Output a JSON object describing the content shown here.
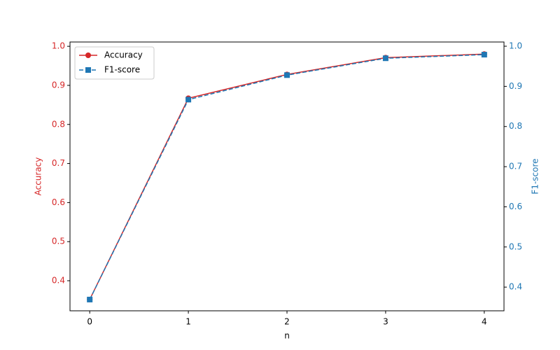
{
  "chart_data": {
    "type": "line",
    "xlabel": "n",
    "ylabel": "Accuracy",
    "y2label": "F1-score",
    "x": [
      0,
      1,
      2,
      3,
      4
    ],
    "series": [
      {
        "name": "Accuracy",
        "color": "#d62728",
        "marker": "circle",
        "linestyle": "solid",
        "axis": "y",
        "values": [
          0.352,
          0.867,
          0.928,
          0.971,
          0.98
        ]
      },
      {
        "name": "F1-score",
        "color": "#1f77b4",
        "marker": "square",
        "linestyle": "dashed",
        "axis": "y2",
        "values": [
          0.369,
          0.867,
          0.928,
          0.97,
          0.979
        ]
      }
    ],
    "xlim": [
      -0.2,
      4.2
    ],
    "xticks": [
      0,
      1,
      2,
      3,
      4
    ],
    "ylim": [
      0.323,
      1.011
    ],
    "yticks": [
      0.4,
      0.5,
      0.6,
      0.7,
      0.8,
      0.9,
      {
        "value": 1,
        "label": "1.0"
      }
    ],
    "y2lim": [
      0.341,
      1.0105
    ],
    "y2ticks": [
      0.4,
      0.5,
      0.6,
      0.7,
      0.8,
      0.9,
      {
        "value": 1,
        "label": "1.0"
      }
    ],
    "legend": "upper left",
    "grid": false
  }
}
